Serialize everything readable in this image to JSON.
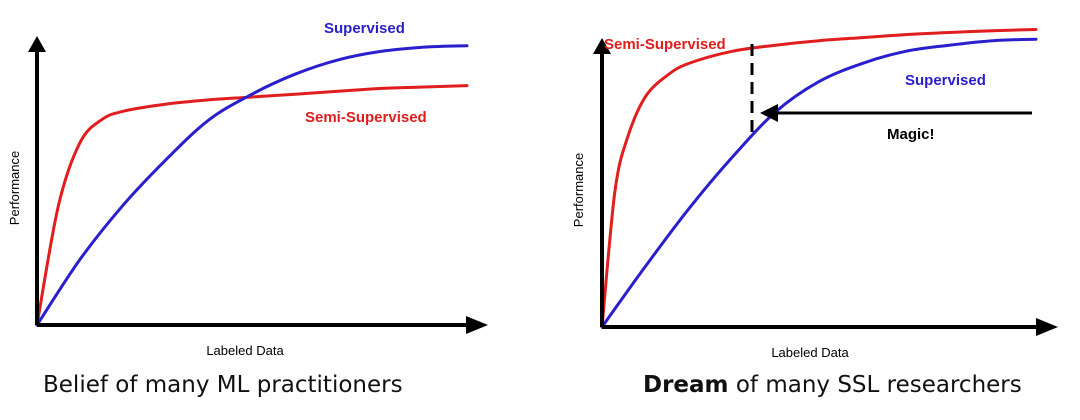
{
  "colors": {
    "supervised": "#2a1fcc",
    "semi_supervised": "#e01e1e",
    "axis": "#000000"
  },
  "panels": [
    {
      "caption": {
        "emphasis": "",
        "text": "Belief of many ML practitioners"
      }
    },
    {
      "caption": {
        "emphasis": "Dream",
        "text": " of many SSL researchers"
      },
      "annotation": "Magic!"
    }
  ],
  "chart_data": [
    {
      "type": "line",
      "title": "",
      "xlabel": "Labeled Data",
      "ylabel": "Performance",
      "xlim": [
        0,
        10
      ],
      "ylim": [
        0,
        10
      ],
      "grid": false,
      "x_ticks": [],
      "y_ticks": [],
      "series": [
        {
          "name": "Supervised",
          "color": "#2a1fcc",
          "x": [
            0,
            1,
            2,
            3,
            4,
            5,
            6,
            7,
            8,
            9,
            10
          ],
          "y": [
            0,
            2.3,
            4.2,
            5.8,
            7.2,
            8.1,
            8.8,
            9.3,
            9.6,
            9.75,
            9.8
          ]
        },
        {
          "name": "Semi-Supervised",
          "color": "#e01e1e",
          "x": [
            0,
            0.5,
            1,
            1.5,
            2,
            3,
            4,
            5,
            6,
            7,
            8,
            9,
            10
          ],
          "y": [
            0,
            4.2,
            6.4,
            7.2,
            7.5,
            7.75,
            7.9,
            8.0,
            8.1,
            8.2,
            8.3,
            8.35,
            8.4
          ]
        }
      ]
    },
    {
      "type": "line",
      "title": "",
      "xlabel": "Labeled Data",
      "ylabel": "Performance",
      "xlim": [
        0,
        10
      ],
      "ylim": [
        0,
        10
      ],
      "grid": false,
      "x_ticks": [],
      "y_ticks": [],
      "series": [
        {
          "name": "Semi-Supervised",
          "color": "#e01e1e",
          "x": [
            0,
            0.3,
            0.6,
            1,
            1.5,
            2,
            3,
            4,
            5,
            6,
            7,
            8,
            9,
            10
          ],
          "y": [
            0,
            4.5,
            6.3,
            7.6,
            8.3,
            8.7,
            9.1,
            9.3,
            9.45,
            9.55,
            9.65,
            9.72,
            9.78,
            9.82
          ]
        },
        {
          "name": "Supervised",
          "color": "#2a1fcc",
          "x": [
            0,
            1,
            2,
            3,
            4,
            5,
            6,
            7,
            8,
            9,
            10
          ],
          "y": [
            0,
            2.0,
            3.9,
            5.6,
            7.1,
            8.1,
            8.7,
            9.1,
            9.3,
            9.45,
            9.5
          ]
        }
      ]
    }
  ]
}
